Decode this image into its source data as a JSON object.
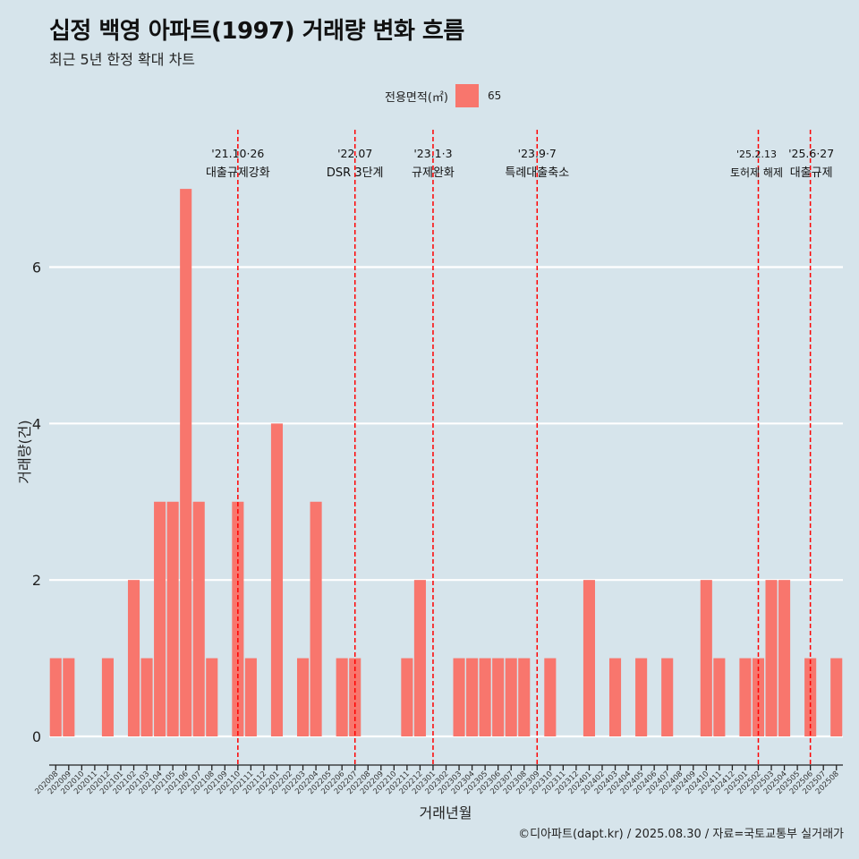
{
  "title": "십정 백영 아파트(1997) 거래량 변화 흐름",
  "subtitle": "최근 5년 한정 확대 차트",
  "legend": {
    "title": "전용면적(㎡)",
    "label": "65"
  },
  "caption": "©디아파트(dapt.kr) / 2025.08.30 / 자료=국토교통부 실거래가",
  "colors": {
    "bar": "#f8766d",
    "event_line": "#ff0000",
    "background": "#d6e4eb",
    "grid": "#ffffff"
  },
  "chart_data": {
    "type": "bar",
    "xlabel": "거래년월",
    "ylabel": "거래량(건)",
    "ylim": [
      0,
      7
    ],
    "yticks": [
      0,
      2,
      4,
      6
    ],
    "grid": true,
    "legend_position": "top",
    "categories": [
      "202008",
      "202009",
      "202010",
      "202011",
      "202012",
      "202101",
      "202102",
      "202103",
      "202104",
      "202105",
      "202106",
      "202107",
      "202108",
      "202109",
      "202110",
      "202111",
      "202112",
      "202201",
      "202202",
      "202203",
      "202204",
      "202205",
      "202206",
      "202207",
      "202208",
      "202209",
      "202210",
      "202211",
      "202212",
      "202301",
      "202302",
      "202303",
      "202304",
      "202305",
      "202306",
      "202307",
      "202308",
      "202309",
      "202310",
      "202311",
      "202312",
      "202401",
      "202402",
      "202403",
      "202404",
      "202405",
      "202406",
      "202407",
      "202408",
      "202409",
      "202410",
      "202411",
      "202412",
      "202501",
      "202502",
      "202503",
      "202504",
      "202505",
      "202506",
      "202507",
      "202508"
    ],
    "series": [
      {
        "name": "65",
        "values": [
          1,
          1,
          0,
          0,
          1,
          0,
          2,
          1,
          3,
          3,
          7,
          3,
          1,
          0,
          3,
          1,
          0,
          4,
          0,
          1,
          3,
          0,
          1,
          1,
          0,
          0,
          0,
          1,
          2,
          0,
          0,
          1,
          1,
          1,
          1,
          1,
          1,
          0,
          1,
          0,
          0,
          2,
          0,
          1,
          0,
          1,
          0,
          1,
          0,
          0,
          2,
          1,
          0,
          1,
          1,
          2,
          2,
          0,
          1,
          0,
          1
        ]
      }
    ],
    "annotations": [
      {
        "position": "202110",
        "date": "'21.10·26",
        "label": "대출규제강화"
      },
      {
        "position": "202207",
        "date": "'22.07",
        "label": "DSR 3단계"
      },
      {
        "position": "202301",
        "date": "'23.1·3",
        "label": "규제완화"
      },
      {
        "position": "202309",
        "date": "'23.9·7",
        "label": "특례대출축소"
      },
      {
        "position": "202502",
        "date": "'25.2.13",
        "label": "토허제 해제"
      },
      {
        "position": "202506",
        "date": "'25.6·27",
        "label": "대출규제"
      }
    ]
  }
}
